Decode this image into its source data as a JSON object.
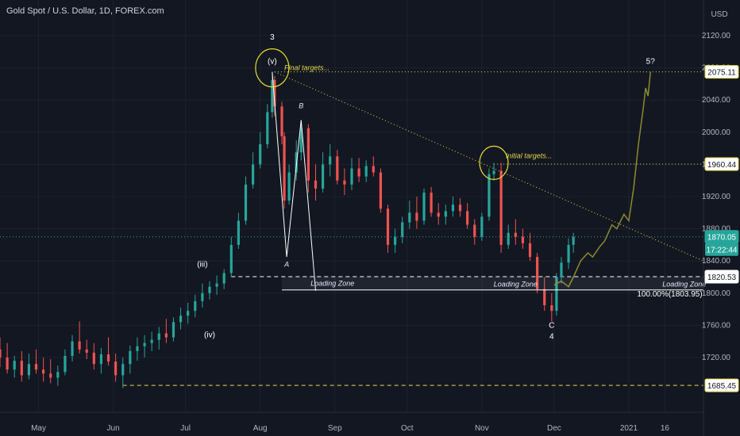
{
  "title": "Gold Spot / U.S. Dollar, 1D, FOREX.com",
  "currency": "USD",
  "price_tags": {
    "last": "1870.05",
    "countdown": "17:22:44"
  },
  "colors": {
    "background": "#131722",
    "up": "#26a69a",
    "down": "#ef5350",
    "projection": "#8c8a2e",
    "annotation_yellow": "#e6d84a"
  },
  "annotations": {
    "wave_3": "3",
    "wave_v": "(v)",
    "final_targets": "Final targets...",
    "initial_targets": "initial targets...",
    "wave_5q": "5?",
    "wave_B": "B",
    "wave_A": "A",
    "wave_iii": "(iii)",
    "wave_iv": "(iv)",
    "wave_C": "C",
    "wave_4": "4",
    "loading_zone_1": "Loading Zone",
    "loading_zone_2": "Loading Zone",
    "loading_zone_3": "Loading Zone",
    "fib_label": "100.00%(1803.95)"
  },
  "chart_data": {
    "type": "candlestick",
    "title": "Gold Spot / U.S. Dollar, 1D, FOREX.com",
    "ylim": [
      1680,
      2150
    ],
    "y_ticks": [
      1720,
      1760,
      1800,
      1840,
      1880,
      1920,
      1960,
      2000,
      2040,
      2080,
      2120
    ],
    "x_ticks": [
      "May",
      "Jun",
      "Jul",
      "Aug",
      "Sep",
      "Oct",
      "Nov",
      "Dec",
      "2021",
      "16"
    ],
    "x_tick_dates": [
      "2020-05-01",
      "2020-06-01",
      "2020-07-01",
      "2020-08-01",
      "2020-09-01",
      "2020-10-01",
      "2020-11-01",
      "2020-12-01",
      "2021-01-01",
      "2021-01-16"
    ],
    "x_range": [
      "2020-04-15",
      "2021-02-01"
    ],
    "candles": [
      [
        "2020-04-15",
        1730,
        1745,
        1708,
        1720
      ],
      [
        "2020-04-18",
        1720,
        1738,
        1700,
        1705
      ],
      [
        "2020-04-21",
        1705,
        1722,
        1695,
        1716
      ],
      [
        "2020-04-24",
        1716,
        1728,
        1690,
        1698
      ],
      [
        "2020-04-27",
        1698,
        1725,
        1693,
        1712
      ],
      [
        "2020-04-30",
        1712,
        1730,
        1700,
        1705
      ],
      [
        "2020-05-03",
        1705,
        1720,
        1690,
        1700
      ],
      [
        "2020-05-06",
        1700,
        1718,
        1688,
        1695
      ],
      [
        "2020-05-09",
        1695,
        1710,
        1685,
        1702
      ],
      [
        "2020-05-12",
        1702,
        1730,
        1698,
        1722
      ],
      [
        "2020-05-15",
        1722,
        1748,
        1715,
        1740
      ],
      [
        "2020-05-18",
        1740,
        1765,
        1725,
        1730
      ],
      [
        "2020-05-21",
        1730,
        1742,
        1718,
        1726
      ],
      [
        "2020-05-24",
        1726,
        1738,
        1705,
        1712
      ],
      [
        "2020-05-27",
        1712,
        1732,
        1700,
        1724
      ],
      [
        "2020-05-30",
        1724,
        1745,
        1710,
        1715
      ],
      [
        "2020-06-02",
        1715,
        1725,
        1690,
        1698
      ],
      [
        "2020-06-05",
        1698,
        1720,
        1682,
        1712
      ],
      [
        "2020-06-08",
        1712,
        1735,
        1700,
        1728
      ],
      [
        "2020-06-11",
        1728,
        1745,
        1716,
        1734
      ],
      [
        "2020-06-14",
        1734,
        1748,
        1720,
        1738
      ],
      [
        "2020-06-17",
        1738,
        1752,
        1728,
        1742
      ],
      [
        "2020-06-20",
        1742,
        1758,
        1730,
        1750
      ],
      [
        "2020-06-23",
        1750,
        1768,
        1738,
        1745
      ],
      [
        "2020-06-26",
        1745,
        1770,
        1740,
        1764
      ],
      [
        "2020-06-29",
        1764,
        1782,
        1755,
        1772
      ],
      [
        "2020-07-02",
        1772,
        1788,
        1762,
        1778
      ],
      [
        "2020-07-05",
        1778,
        1798,
        1770,
        1790
      ],
      [
        "2020-07-08",
        1790,
        1812,
        1782,
        1800
      ],
      [
        "2020-07-11",
        1800,
        1815,
        1792,
        1808
      ],
      [
        "2020-07-14",
        1808,
        1822,
        1798,
        1812
      ],
      [
        "2020-07-17",
        1812,
        1830,
        1805,
        1825
      ],
      [
        "2020-07-20",
        1825,
        1870,
        1820,
        1860
      ],
      [
        "2020-07-23",
        1860,
        1900,
        1855,
        1890
      ],
      [
        "2020-07-26",
        1890,
        1945,
        1885,
        1935
      ],
      [
        "2020-07-29",
        1935,
        1975,
        1930,
        1960
      ],
      [
        "2020-08-01",
        1960,
        2000,
        1955,
        1985
      ],
      [
        "2020-08-04",
        1985,
        2035,
        1980,
        2025
      ],
      [
        "2020-08-06",
        2025,
        2075,
        2018,
        2065
      ],
      [
        "2020-08-07",
        2065,
        2070,
        2020,
        2032
      ],
      [
        "2020-08-10",
        2032,
        2038,
        1985,
        1995
      ],
      [
        "2020-08-11",
        1995,
        2000,
        1905,
        1915
      ],
      [
        "2020-08-13",
        1915,
        1960,
        1910,
        1950
      ],
      [
        "2020-08-16",
        1950,
        1990,
        1940,
        1975
      ],
      [
        "2020-08-18",
        1975,
        2015,
        1965,
        2005
      ],
      [
        "2020-08-21",
        2005,
        2010,
        1925,
        1940
      ],
      [
        "2020-08-24",
        1940,
        1960,
        1915,
        1930
      ],
      [
        "2020-08-27",
        1930,
        1975,
        1925,
        1960
      ],
      [
        "2020-08-30",
        1960,
        1985,
        1945,
        1970
      ],
      [
        "2020-09-02",
        1970,
        1978,
        1935,
        1940
      ],
      [
        "2020-09-05",
        1940,
        1955,
        1922,
        1935
      ],
      [
        "2020-09-08",
        1935,
        1968,
        1928,
        1955
      ],
      [
        "2020-09-11",
        1955,
        1968,
        1938,
        1945
      ],
      [
        "2020-09-14",
        1945,
        1965,
        1938,
        1958
      ],
      [
        "2020-09-17",
        1958,
        1970,
        1945,
        1950
      ],
      [
        "2020-09-20",
        1950,
        1955,
        1900,
        1905
      ],
      [
        "2020-09-23",
        1905,
        1910,
        1850,
        1860
      ],
      [
        "2020-09-26",
        1860,
        1880,
        1850,
        1870
      ],
      [
        "2020-09-29",
        1870,
        1895,
        1862,
        1888
      ],
      [
        "2020-10-02",
        1888,
        1915,
        1880,
        1900
      ],
      [
        "2020-10-05",
        1900,
        1920,
        1880,
        1890
      ],
      [
        "2020-10-08",
        1890,
        1930,
        1885,
        1925
      ],
      [
        "2020-10-11",
        1925,
        1932,
        1895,
        1900
      ],
      [
        "2020-10-14",
        1900,
        1912,
        1885,
        1895
      ],
      [
        "2020-10-17",
        1895,
        1910,
        1885,
        1902
      ],
      [
        "2020-10-20",
        1902,
        1920,
        1895,
        1910
      ],
      [
        "2020-10-23",
        1910,
        1918,
        1895,
        1902
      ],
      [
        "2020-10-26",
        1902,
        1912,
        1880,
        1885
      ],
      [
        "2020-10-29",
        1885,
        1892,
        1860,
        1870
      ],
      [
        "2020-11-01",
        1870,
        1900,
        1865,
        1895
      ],
      [
        "2020-11-04",
        1895,
        1955,
        1890,
        1948
      ],
      [
        "2020-11-06",
        1948,
        1962,
        1940,
        1952
      ],
      [
        "2020-11-09",
        1952,
        1962,
        1850,
        1860
      ],
      [
        "2020-11-12",
        1860,
        1885,
        1855,
        1875
      ],
      [
        "2020-11-15",
        1875,
        1892,
        1860,
        1870
      ],
      [
        "2020-11-18",
        1870,
        1880,
        1855,
        1862
      ],
      [
        "2020-11-21",
        1862,
        1875,
        1840,
        1845
      ],
      [
        "2020-11-24",
        1845,
        1850,
        1800,
        1805
      ],
      [
        "2020-11-27",
        1805,
        1820,
        1778,
        1785
      ],
      [
        "2020-11-30",
        1785,
        1800,
        1765,
        1778
      ],
      [
        "2020-12-02",
        1778,
        1825,
        1772,
        1820
      ],
      [
        "2020-12-04",
        1820,
        1845,
        1812,
        1838
      ],
      [
        "2020-12-07",
        1838,
        1868,
        1830,
        1860
      ],
      [
        "2020-12-09",
        1860,
        1875,
        1850,
        1870
      ]
    ],
    "projection_path": [
      [
        "2020-12-01",
        1810
      ],
      [
        "2020-12-04",
        1815
      ],
      [
        "2020-12-07",
        1808
      ],
      [
        "2020-12-09",
        1820
      ],
      [
        "2020-12-12",
        1840
      ],
      [
        "2020-12-15",
        1850
      ],
      [
        "2020-12-17",
        1845
      ],
      [
        "2020-12-20",
        1858
      ],
      [
        "2020-12-22",
        1865
      ],
      [
        "2020-12-25",
        1885
      ],
      [
        "2020-12-27",
        1880
      ],
      [
        "2020-12-30",
        1898
      ],
      [
        "2021-01-01",
        1890
      ],
      [
        "2021-01-03",
        1930
      ],
      [
        "2021-01-05",
        1985
      ],
      [
        "2021-01-07",
        2030
      ],
      [
        "2021-01-08",
        2055
      ],
      [
        "2021-01-09",
        2045
      ],
      [
        "2021-01-10",
        2075
      ]
    ],
    "horizontal_levels": [
      {
        "value": 2075.11,
        "label": "2075.11",
        "style": "dotted",
        "color": "#e6d84a"
      },
      {
        "value": 1960.44,
        "label": "1960.44",
        "style": "dotted",
        "color": "#e6d84a"
      },
      {
        "value": 1820.53,
        "label": "1820.53",
        "style": "dashed",
        "color": "#ffffff"
      },
      {
        "value": 1685.45,
        "label": "1685.45",
        "style": "dashed",
        "color": "#e6d84a"
      },
      {
        "value": 1870.05,
        "label": "1870.05",
        "style": "dotted",
        "color": "#26a69a"
      }
    ],
    "trendline": [
      [
        "2020-08-07",
        2075
      ],
      [
        "2021-02-01",
        1840
      ]
    ],
    "fib_level": 1803.95
  }
}
